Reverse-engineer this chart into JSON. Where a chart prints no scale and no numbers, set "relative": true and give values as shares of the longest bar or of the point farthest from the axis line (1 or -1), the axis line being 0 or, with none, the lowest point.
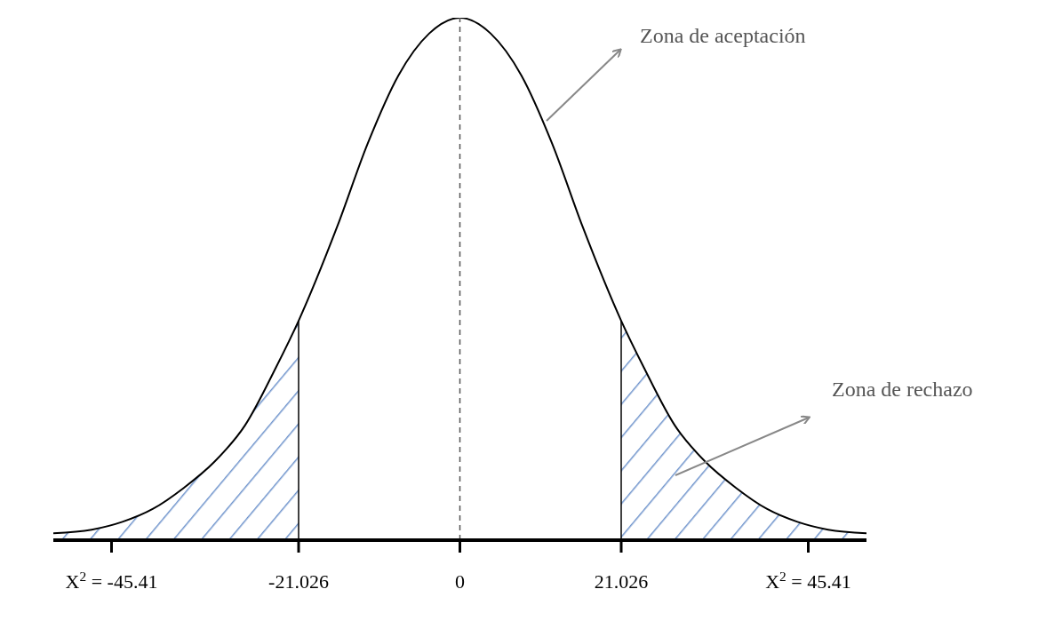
{
  "chart_data": {
    "type": "line",
    "relative": true,
    "x": [
      -53,
      -48,
      -44,
      -40,
      -36,
      -32,
      -28,
      -24,
      -21.026,
      -16,
      -12,
      -8,
      -4,
      0,
      4,
      8,
      12,
      16,
      21.026,
      24,
      28,
      32,
      36,
      40,
      44,
      48,
      53
    ],
    "series": [
      {
        "color": "#000000",
        "values": [
          0.013,
          0.02,
          0.035,
          0.06,
          0.1,
          0.15,
          0.22,
          0.33,
          0.42,
          0.6,
          0.76,
          0.89,
          0.97,
          1,
          0.97,
          0.89,
          0.76,
          0.6,
          0.42,
          0.33,
          0.22,
          0.15,
          0.1,
          0.06,
          0.035,
          0.02,
          0.013
        ]
      },
      {
        "type": "area",
        "color": "#6f94cc",
        "x": [
          -53,
          -48,
          -44,
          -40,
          -36,
          -32,
          -28,
          -24,
          -21.026,
          0,
          21.026,
          24,
          28,
          32,
          36,
          40,
          44,
          48,
          53
        ],
        "values": [
          0.013,
          0.02,
          0.035,
          0.06,
          0.1,
          0.15,
          0.22,
          0.33,
          0.42,
          null,
          0.42,
          0.33,
          0.22,
          0.15,
          0.1,
          0.06,
          0.035,
          0.02,
          0.013
        ]
      }
    ],
    "xlim": [
      -53,
      53
    ],
    "xticks": [
      {
        "value": -45.41,
        "label": "X$^{2}$ = -45.41"
      },
      {
        "value": -21.026,
        "label": "-21.026"
      },
      {
        "value": 0,
        "label": "0"
      },
      {
        "value": 21.026,
        "label": "21.026"
      },
      {
        "value": 45.41,
        "label": "X$^{2}$ = 45.41"
      }
    ],
    "ref_lines": [
      {
        "axis": "x",
        "value": 0,
        "line_style": "dashed",
        "color": "#555555"
      },
      {
        "axis": "x",
        "value": -21.026,
        "color": "#000000"
      },
      {
        "axis": "x",
        "value": 21.026,
        "color": "#000000"
      }
    ],
    "annotations": [
      "Zona de aceptación",
      "Zona de rechazo"
    ],
    "grid": false,
    "legend": false,
    "marker": "none"
  }
}
